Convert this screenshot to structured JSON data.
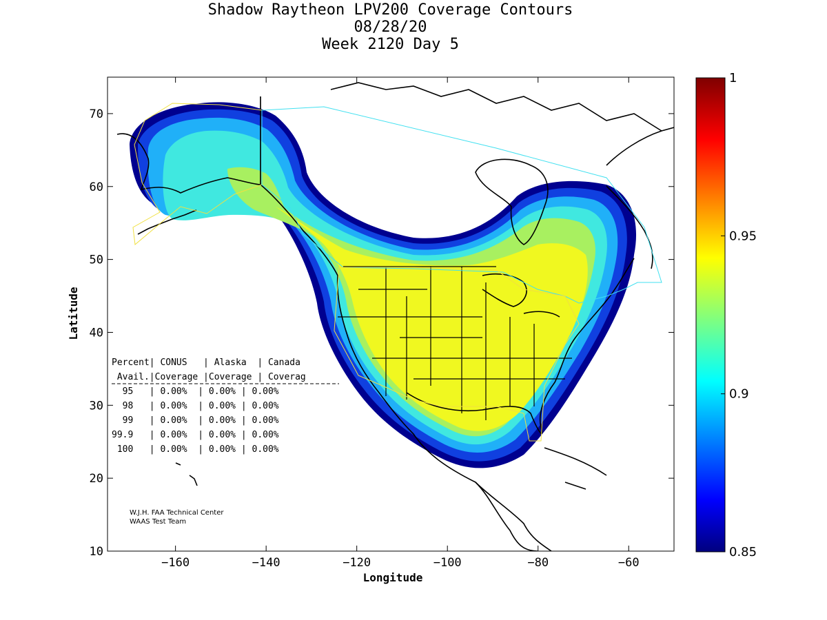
{
  "header": {
    "title_line1": "Shadow Raytheon LPV200 Coverage Contours",
    "title_line2": "08/28/20",
    "title_line3": "Week 2120 Day 5"
  },
  "axes": {
    "xlabel": "Longitude",
    "ylabel": "Latitude",
    "xlim": [
      -175,
      -50
    ],
    "ylim": [
      10,
      75
    ],
    "x_ticks": [
      -160,
      -140,
      -120,
      -100,
      -80,
      -60
    ],
    "y_ticks": [
      10,
      20,
      30,
      40,
      50,
      60,
      70
    ]
  },
  "colorbar": {
    "min": 0.85,
    "max": 1,
    "ticks": [
      {
        "value": 1,
        "label": "1"
      },
      {
        "value": 0.95,
        "label": "0.95"
      },
      {
        "value": 0.9,
        "label": "0.9"
      },
      {
        "value": 0.85,
        "label": "0.85"
      }
    ],
    "colormap": "jet"
  },
  "table": {
    "header1": "Percent| CONUS   | Alaska  | Canada",
    "header2": " Avail.|Coverage |Coverage | Coverag",
    "rows": [
      "  95   | 0.00%  | 0.00% | 0.00%",
      "  98   | 0.00%  | 0.00% | 0.00%",
      "  99   | 0.00%  | 0.00% | 0.00%",
      "99.9   | 0.00%  | 0.00% | 0.00%",
      " 100   | 0.00%  | 0.00% | 0.00%"
    ]
  },
  "credit": {
    "line1": "W.J.H. FAA Technical Center",
    "line2": "WAAS Test Team"
  },
  "colors": {
    "coverage_high": "#f0f820",
    "coverage_mid": "#40e0f0",
    "coverage_edge": "#1020a0",
    "alaska_boundary": "#f0e040",
    "canada_boundary": "#40e0f0"
  }
}
